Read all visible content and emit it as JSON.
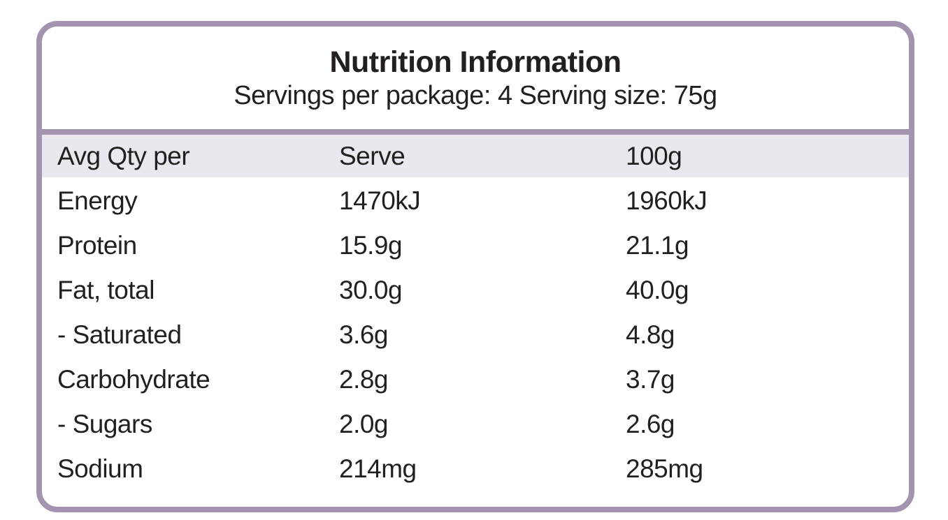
{
  "panel": {
    "title": "Nutrition Information",
    "subtitle": "Servings per package: 4 Serving size: 75g",
    "colors": {
      "border": "#a393ae",
      "header_background": "#eae8ee",
      "text": "#231f20",
      "background": "#ffffff"
    }
  },
  "table": {
    "columns": {
      "label": "Avg Qty per",
      "serve": "Serve",
      "per100g": "100g"
    },
    "rows": [
      {
        "label": "Energy",
        "serve": "1470kJ",
        "per100g": "1960kJ"
      },
      {
        "label": "Protein",
        "serve": "15.9g",
        "per100g": "21.1g"
      },
      {
        "label": "Fat, total",
        "serve": "30.0g",
        "per100g": "40.0g"
      },
      {
        "label": "- Saturated",
        "serve": "3.6g",
        "per100g": "4.8g"
      },
      {
        "label": "Carbohydrate",
        "serve": "2.8g",
        "per100g": "3.7g"
      },
      {
        "label": "- Sugars",
        "serve": "2.0g",
        "per100g": "2.6g"
      },
      {
        "label": "Sodium",
        "serve": "214mg",
        "per100g": "285mg"
      }
    ]
  }
}
